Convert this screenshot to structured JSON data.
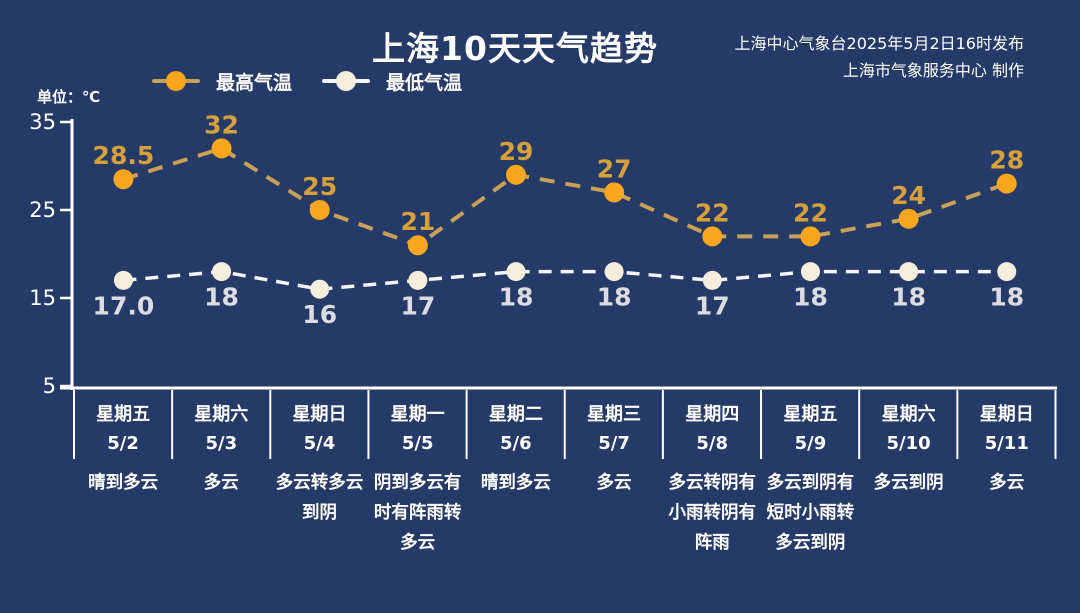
{
  "title": "上海10天天气趋势",
  "publisher": {
    "line1": "上海中心气象台2025年5月2日16时发布",
    "line2": "上海市气象服务中心 制作"
  },
  "unit_label": "单位：℃",
  "colors": {
    "background": "#253a66",
    "axis": "#ffffff",
    "divider": "#ffffff",
    "tick_label": "#ffffff"
  },
  "chart_data": {
    "type": "line",
    "title": "上海10天天气趋势",
    "unit": "℃",
    "categories": [
      "5/2",
      "5/3",
      "5/4",
      "5/5",
      "5/6",
      "5/7",
      "5/8",
      "5/9",
      "5/10",
      "5/11"
    ],
    "series": [
      {
        "name": "最高气温",
        "values": [
          28.5,
          32,
          25,
          21,
          29,
          27,
          22,
          22,
          24,
          28
        ],
        "labels": [
          "28.5",
          "32",
          "25",
          "21",
          "29",
          "27",
          "22",
          "22",
          "24",
          "28"
        ],
        "marker_color": "#f8a61d",
        "line_color": "#c8a057",
        "label_color": "#d6a03c",
        "label_side": "above"
      },
      {
        "name": "最低气温",
        "values": [
          17,
          18,
          16,
          17,
          18,
          18,
          17,
          18,
          18,
          18
        ],
        "labels": [
          "17.0",
          "18",
          "16",
          "17",
          "18",
          "18",
          "17",
          "18",
          "18",
          "18"
        ],
        "marker_color": "#f6eedd",
        "line_color": "#f4f5f7",
        "label_color": "#dcdde2",
        "label_side": "below"
      }
    ],
    "ylim": [
      5,
      35
    ],
    "yticks": [
      35,
      25,
      15,
      5
    ],
    "grid": false,
    "line_style": "dashed",
    "legend_position": "top-left"
  },
  "columns": [
    {
      "day": "星期五",
      "date": "5/2",
      "weather": "晴到多云"
    },
    {
      "day": "星期六",
      "date": "5/3",
      "weather": "多云"
    },
    {
      "day": "星期日",
      "date": "5/4",
      "weather": "多云转多云到阴"
    },
    {
      "day": "星期一",
      "date": "5/5",
      "weather": "阴到多云有时有阵雨转多云"
    },
    {
      "day": "星期二",
      "date": "5/6",
      "weather": "晴到多云"
    },
    {
      "day": "星期三",
      "date": "5/7",
      "weather": "多云"
    },
    {
      "day": "星期四",
      "date": "5/8",
      "weather": "多云转阴有小雨转阴有阵雨"
    },
    {
      "day": "星期五",
      "date": "5/9",
      "weather": "多云到阴有短时小雨转多云到阴"
    },
    {
      "day": "星期六",
      "date": "5/10",
      "weather": "多云到阴"
    },
    {
      "day": "星期日",
      "date": "5/11",
      "weather": "多云"
    }
  ]
}
